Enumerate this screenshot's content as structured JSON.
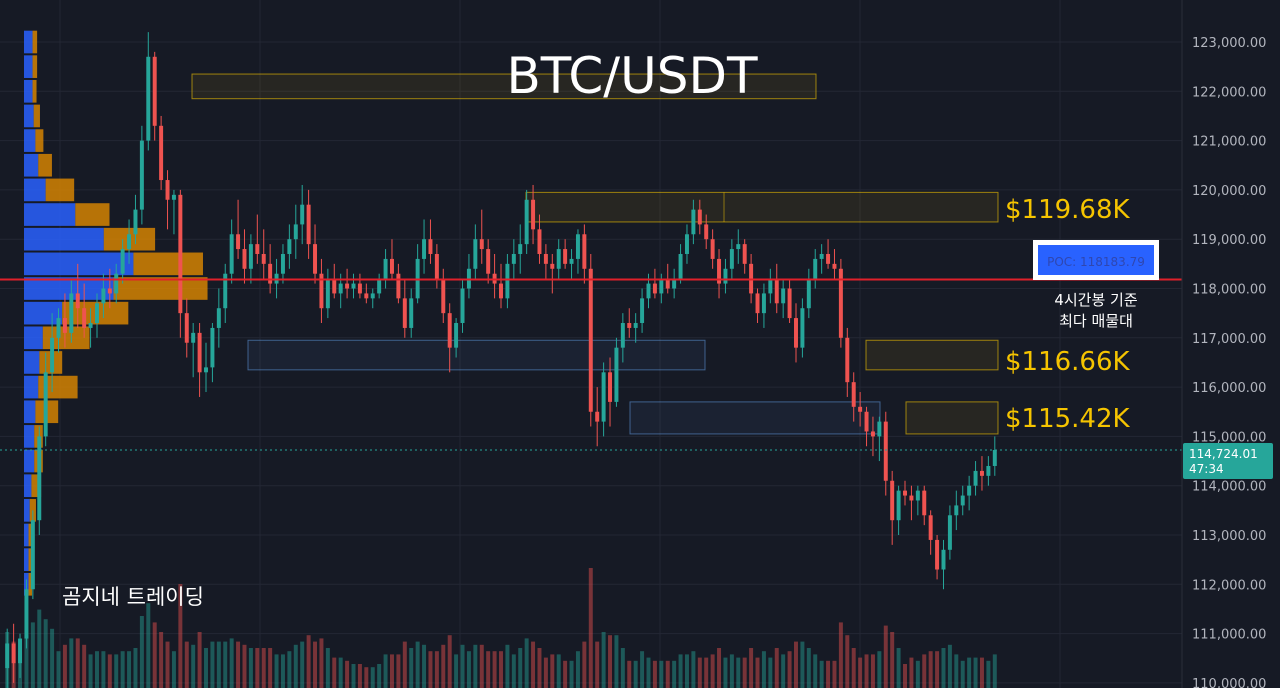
{
  "colors": {
    "background": "#161a25",
    "grid": "#232734",
    "up": "#26a69a",
    "down": "#ef5350",
    "profile_up": "#2962ff",
    "profile_down": "#e08a00",
    "zone_yellow": "#f5c400",
    "zone_blue": "#5a8fd0",
    "poc_line": "#e0202a",
    "current_price": "#26a69a"
  },
  "chart_data": {
    "type": "candlestick",
    "title": "BTC/USDT",
    "watermark": "곰지네 트레이딩",
    "y_axis": {
      "range": [
        110000,
        123800
      ],
      "ticks": [
        110000,
        111000,
        112000,
        113000,
        114000,
        115000,
        116000,
        117000,
        118000,
        119000,
        120000,
        121000,
        122000,
        123000
      ],
      "tick_labels": [
        "110,000.00",
        "111,000.00",
        "112,000.00",
        "113,000.00",
        "114,000.00",
        "115,000.00",
        "116,000.00",
        "117,000.00",
        "118,000.00",
        "119,000.00",
        "120,000.00",
        "121,000.00",
        "122,000.00",
        "123,000.00"
      ]
    },
    "current_price": {
      "value": 114724.01,
      "label": "114,724.01",
      "countdown": "47:34"
    },
    "poc": {
      "value": 118183.79,
      "label": "POC: 118183.79",
      "note_lines": [
        "4시간봉 기준",
        "최다 매물대"
      ]
    },
    "zones": [
      {
        "name": "top-zone",
        "color": "yellow",
        "high": 122350,
        "low": 121850
      },
      {
        "name": "zone-119",
        "color": "yellow",
        "high": 119950,
        "low": 119350,
        "label": "$119.68K"
      },
      {
        "name": "zone-116",
        "color": "yellow",
        "high": 116950,
        "low": 116350,
        "label": "$116.66K"
      },
      {
        "name": "zone-115",
        "color": "yellow",
        "high": 115700,
        "low": 115050,
        "label": "$115.42K"
      },
      {
        "name": "blue-zone-1",
        "color": "blue",
        "high": 116950,
        "low": 116350
      },
      {
        "name": "blue-zone-2",
        "color": "blue",
        "high": 115700,
        "low": 115050
      }
    ],
    "volume_profile": [
      {
        "price": 123000,
        "up": 150,
        "down": 80
      },
      {
        "price": 122500,
        "up": 150,
        "down": 80
      },
      {
        "price": 122000,
        "up": 150,
        "down": 70
      },
      {
        "price": 121500,
        "up": 170,
        "down": 110
      },
      {
        "price": 121000,
        "up": 200,
        "down": 140
      },
      {
        "price": 120500,
        "up": 250,
        "down": 240
      },
      {
        "price": 120000,
        "up": 380,
        "down": 500
      },
      {
        "price": 119500,
        "up": 900,
        "down": 600
      },
      {
        "price": 119000,
        "up": 1400,
        "down": 900
      },
      {
        "price": 118500,
        "up": 1920,
        "down": 1220
      },
      {
        "price": 118000,
        "up": 1570,
        "down": 1650
      },
      {
        "price": 117500,
        "up": 670,
        "down": 1160
      },
      {
        "price": 117000,
        "up": 330,
        "down": 820
      },
      {
        "price": 116500,
        "up": 270,
        "down": 400
      },
      {
        "price": 116000,
        "up": 250,
        "down": 690
      },
      {
        "price": 115500,
        "up": 200,
        "down": 400
      },
      {
        "price": 115000,
        "up": 180,
        "down": 150
      },
      {
        "price": 114500,
        "up": 180,
        "down": 150
      },
      {
        "price": 114000,
        "up": 130,
        "down": 170
      },
      {
        "price": 113500,
        "up": 100,
        "down": 110
      },
      {
        "price": 113000,
        "up": 80,
        "down": 80
      },
      {
        "price": 112500,
        "up": 80,
        "down": 60
      },
      {
        "price": 112000,
        "up": 80,
        "down": 60
      }
    ],
    "candles": [
      {
        "o": 110300,
        "h": 111100,
        "l": 109600,
        "c": 110800
      },
      {
        "o": 110800,
        "h": 111200,
        "l": 110000,
        "c": 110400
      },
      {
        "o": 110400,
        "h": 111000,
        "l": 110100,
        "c": 110900
      },
      {
        "o": 110900,
        "h": 112100,
        "l": 110700,
        "c": 111900
      },
      {
        "o": 111900,
        "h": 113500,
        "l": 111700,
        "c": 113300
      },
      {
        "o": 113300,
        "h": 115200,
        "l": 113000,
        "c": 115000
      },
      {
        "o": 115000,
        "h": 116700,
        "l": 114800,
        "c": 116300
      },
      {
        "o": 116300,
        "h": 117500,
        "l": 115900,
        "c": 117000
      },
      {
        "o": 117000,
        "h": 117600,
        "l": 116700,
        "c": 117400
      },
      {
        "o": 117400,
        "h": 117900,
        "l": 116800,
        "c": 117100
      },
      {
        "o": 117100,
        "h": 118200,
        "l": 116900,
        "c": 117900
      },
      {
        "o": 117900,
        "h": 118500,
        "l": 117200,
        "c": 117600
      },
      {
        "o": 117600,
        "h": 118100,
        "l": 117000,
        "c": 117200
      },
      {
        "o": 117200,
        "h": 117600,
        "l": 116800,
        "c": 117300
      },
      {
        "o": 117300,
        "h": 117900,
        "l": 117000,
        "c": 117700
      },
      {
        "o": 117700,
        "h": 118300,
        "l": 117400,
        "c": 118000
      },
      {
        "o": 118000,
        "h": 118400,
        "l": 117600,
        "c": 117900
      },
      {
        "o": 117900,
        "h": 118500,
        "l": 117700,
        "c": 118300
      },
      {
        "o": 118300,
        "h": 119000,
        "l": 118100,
        "c": 118800
      },
      {
        "o": 118800,
        "h": 119400,
        "l": 118500,
        "c": 119100
      },
      {
        "o": 119100,
        "h": 119900,
        "l": 118900,
        "c": 119600
      },
      {
        "o": 119600,
        "h": 121300,
        "l": 119300,
        "c": 121000
      },
      {
        "o": 121000,
        "h": 123200,
        "l": 120800,
        "c": 122700
      },
      {
        "o": 122700,
        "h": 122800,
        "l": 121000,
        "c": 121300
      },
      {
        "o": 121300,
        "h": 121500,
        "l": 120000,
        "c": 120200
      },
      {
        "o": 120200,
        "h": 120400,
        "l": 119200,
        "c": 119800
      },
      {
        "o": 119800,
        "h": 120000,
        "l": 119100,
        "c": 119900
      },
      {
        "o": 119900,
        "h": 120000,
        "l": 117000,
        "c": 117500
      },
      {
        "o": 117500,
        "h": 117800,
        "l": 116600,
        "c": 116900
      },
      {
        "o": 116900,
        "h": 117300,
        "l": 116200,
        "c": 117100
      },
      {
        "o": 117100,
        "h": 117300,
        "l": 115800,
        "c": 116300
      },
      {
        "o": 116300,
        "h": 116900,
        "l": 115900,
        "c": 116400
      },
      {
        "o": 116400,
        "h": 117300,
        "l": 116100,
        "c": 117200
      },
      {
        "o": 117200,
        "h": 118000,
        "l": 116800,
        "c": 117600
      },
      {
        "o": 117600,
        "h": 118500,
        "l": 117300,
        "c": 118300
      },
      {
        "o": 118300,
        "h": 119400,
        "l": 118100,
        "c": 119100
      },
      {
        "o": 119100,
        "h": 119800,
        "l": 118600,
        "c": 118800
      },
      {
        "o": 118800,
        "h": 119200,
        "l": 118100,
        "c": 118400
      },
      {
        "o": 118400,
        "h": 119100,
        "l": 118100,
        "c": 118900
      },
      {
        "o": 118900,
        "h": 119500,
        "l": 118500,
        "c": 118700
      },
      {
        "o": 118700,
        "h": 119200,
        "l": 118200,
        "c": 118500
      },
      {
        "o": 118500,
        "h": 118900,
        "l": 117900,
        "c": 118100
      },
      {
        "o": 118100,
        "h": 118600,
        "l": 117800,
        "c": 118300
      },
      {
        "o": 118300,
        "h": 118900,
        "l": 118100,
        "c": 118700
      },
      {
        "o": 118700,
        "h": 119300,
        "l": 118400,
        "c": 119000
      },
      {
        "o": 119000,
        "h": 119700,
        "l": 118600,
        "c": 119300
      },
      {
        "o": 119300,
        "h": 120100,
        "l": 118900,
        "c": 119700
      },
      {
        "o": 119700,
        "h": 120000,
        "l": 118600,
        "c": 118900
      },
      {
        "o": 118900,
        "h": 119300,
        "l": 118100,
        "c": 118300
      },
      {
        "o": 118300,
        "h": 118600,
        "l": 117300,
        "c": 117600
      },
      {
        "o": 117600,
        "h": 118400,
        "l": 117400,
        "c": 118200
      },
      {
        "o": 118200,
        "h": 118500,
        "l": 117800,
        "c": 117900
      },
      {
        "o": 117900,
        "h": 118300,
        "l": 117600,
        "c": 118100
      },
      {
        "o": 118100,
        "h": 118400,
        "l": 117800,
        "c": 118000
      },
      {
        "o": 118000,
        "h": 118300,
        "l": 117800,
        "c": 118100
      },
      {
        "o": 118100,
        "h": 118300,
        "l": 117800,
        "c": 117900
      },
      {
        "o": 117900,
        "h": 118100,
        "l": 117700,
        "c": 117800
      },
      {
        "o": 117800,
        "h": 118000,
        "l": 117600,
        "c": 117900
      },
      {
        "o": 117900,
        "h": 118300,
        "l": 117800,
        "c": 118200
      },
      {
        "o": 118200,
        "h": 118800,
        "l": 118000,
        "c": 118600
      },
      {
        "o": 118600,
        "h": 119000,
        "l": 118200,
        "c": 118300
      },
      {
        "o": 118300,
        "h": 118500,
        "l": 117700,
        "c": 117800
      },
      {
        "o": 117800,
        "h": 118200,
        "l": 117000,
        "c": 117200
      },
      {
        "o": 117200,
        "h": 118000,
        "l": 117000,
        "c": 117800
      },
      {
        "o": 117800,
        "h": 118900,
        "l": 117700,
        "c": 118600
      },
      {
        "o": 118600,
        "h": 119400,
        "l": 118300,
        "c": 119000
      },
      {
        "o": 119000,
        "h": 119400,
        "l": 118500,
        "c": 118700
      },
      {
        "o": 118700,
        "h": 118900,
        "l": 118000,
        "c": 118200
      },
      {
        "o": 118200,
        "h": 118400,
        "l": 117300,
        "c": 117500
      },
      {
        "o": 117500,
        "h": 117700,
        "l": 116300,
        "c": 116800
      },
      {
        "o": 116800,
        "h": 117400,
        "l": 116600,
        "c": 117300
      },
      {
        "o": 117300,
        "h": 118200,
        "l": 117100,
        "c": 118000
      },
      {
        "o": 118000,
        "h": 118700,
        "l": 117800,
        "c": 118400
      },
      {
        "o": 118400,
        "h": 119300,
        "l": 118200,
        "c": 119000
      },
      {
        "o": 119000,
        "h": 119600,
        "l": 118500,
        "c": 118800
      },
      {
        "o": 118800,
        "h": 119000,
        "l": 118100,
        "c": 118300
      },
      {
        "o": 118300,
        "h": 118700,
        "l": 117800,
        "c": 118100
      },
      {
        "o": 118100,
        "h": 118500,
        "l": 117600,
        "c": 117800
      },
      {
        "o": 117800,
        "h": 118700,
        "l": 117600,
        "c": 118500
      },
      {
        "o": 118500,
        "h": 119000,
        "l": 118200,
        "c": 118700
      },
      {
        "o": 118700,
        "h": 119300,
        "l": 118300,
        "c": 118900
      },
      {
        "o": 118900,
        "h": 120000,
        "l": 118700,
        "c": 119800
      },
      {
        "o": 119800,
        "h": 120100,
        "l": 118900,
        "c": 119200
      },
      {
        "o": 119200,
        "h": 119500,
        "l": 118500,
        "c": 118700
      },
      {
        "o": 118700,
        "h": 118900,
        "l": 118200,
        "c": 118500
      },
      {
        "o": 118500,
        "h": 118700,
        "l": 117900,
        "c": 118400
      },
      {
        "o": 118400,
        "h": 119000,
        "l": 118200,
        "c": 118800
      },
      {
        "o": 118800,
        "h": 119000,
        "l": 118400,
        "c": 118500
      },
      {
        "o": 118500,
        "h": 118800,
        "l": 118200,
        "c": 118600
      },
      {
        "o": 118600,
        "h": 119200,
        "l": 118300,
        "c": 119100
      },
      {
        "o": 119100,
        "h": 119300,
        "l": 118100,
        "c": 118400
      },
      {
        "o": 118400,
        "h": 118700,
        "l": 115200,
        "c": 115500
      },
      {
        "o": 115500,
        "h": 116000,
        "l": 114800,
        "c": 115300
      },
      {
        "o": 115300,
        "h": 116500,
        "l": 115000,
        "c": 116300
      },
      {
        "o": 116300,
        "h": 116600,
        "l": 115200,
        "c": 115700
      },
      {
        "o": 115700,
        "h": 117000,
        "l": 115600,
        "c": 116800
      },
      {
        "o": 116800,
        "h": 117500,
        "l": 116500,
        "c": 117300
      },
      {
        "o": 117300,
        "h": 117600,
        "l": 117000,
        "c": 117200
      },
      {
        "o": 117200,
        "h": 117500,
        "l": 116900,
        "c": 117300
      },
      {
        "o": 117300,
        "h": 118000,
        "l": 117100,
        "c": 117800
      },
      {
        "o": 117800,
        "h": 118300,
        "l": 117600,
        "c": 118100
      },
      {
        "o": 118100,
        "h": 118400,
        "l": 117800,
        "c": 117900
      },
      {
        "o": 117900,
        "h": 118300,
        "l": 117700,
        "c": 118200
      },
      {
        "o": 118200,
        "h": 118500,
        "l": 117900,
        "c": 118000
      },
      {
        "o": 118000,
        "h": 118400,
        "l": 117800,
        "c": 118200
      },
      {
        "o": 118200,
        "h": 118900,
        "l": 118100,
        "c": 118700
      },
      {
        "o": 118700,
        "h": 119300,
        "l": 118500,
        "c": 119100
      },
      {
        "o": 119100,
        "h": 119800,
        "l": 118900,
        "c": 119600
      },
      {
        "o": 119600,
        "h": 119800,
        "l": 119100,
        "c": 119300
      },
      {
        "o": 119300,
        "h": 119500,
        "l": 118800,
        "c": 119000
      },
      {
        "o": 119000,
        "h": 119200,
        "l": 118400,
        "c": 118600
      },
      {
        "o": 118600,
        "h": 118800,
        "l": 117800,
        "c": 118100
      },
      {
        "o": 118100,
        "h": 118600,
        "l": 117900,
        "c": 118400
      },
      {
        "o": 118400,
        "h": 119000,
        "l": 118200,
        "c": 118800
      },
      {
        "o": 118800,
        "h": 119200,
        "l": 118500,
        "c": 118900
      },
      {
        "o": 118900,
        "h": 119000,
        "l": 118300,
        "c": 118500
      },
      {
        "o": 118500,
        "h": 118700,
        "l": 117700,
        "c": 117900
      },
      {
        "o": 117900,
        "h": 118000,
        "l": 117300,
        "c": 117500
      },
      {
        "o": 117500,
        "h": 118100,
        "l": 117200,
        "c": 117900
      },
      {
        "o": 117900,
        "h": 118400,
        "l": 117700,
        "c": 118200
      },
      {
        "o": 118200,
        "h": 118500,
        "l": 117500,
        "c": 117700
      },
      {
        "o": 117700,
        "h": 118200,
        "l": 117400,
        "c": 118000
      },
      {
        "o": 118000,
        "h": 118200,
        "l": 117300,
        "c": 117400
      },
      {
        "o": 117400,
        "h": 117700,
        "l": 116500,
        "c": 116800
      },
      {
        "o": 116800,
        "h": 117800,
        "l": 116600,
        "c": 117600
      },
      {
        "o": 117600,
        "h": 118400,
        "l": 117400,
        "c": 118200
      },
      {
        "o": 118200,
        "h": 118800,
        "l": 118000,
        "c": 118600
      },
      {
        "o": 118600,
        "h": 118900,
        "l": 118300,
        "c": 118700
      },
      {
        "o": 118700,
        "h": 119000,
        "l": 118400,
        "c": 118500
      },
      {
        "o": 118500,
        "h": 118800,
        "l": 118200,
        "c": 118400
      },
      {
        "o": 118400,
        "h": 118600,
        "l": 116800,
        "c": 117000
      },
      {
        "o": 117000,
        "h": 117200,
        "l": 115800,
        "c": 116100
      },
      {
        "o": 116100,
        "h": 116300,
        "l": 115300,
        "c": 115600
      },
      {
        "o": 115600,
        "h": 115900,
        "l": 115200,
        "c": 115500
      },
      {
        "o": 115500,
        "h": 115600,
        "l": 114800,
        "c": 115100
      },
      {
        "o": 115100,
        "h": 115400,
        "l": 114600,
        "c": 115000
      },
      {
        "o": 115000,
        "h": 115400,
        "l": 114500,
        "c": 115300
      },
      {
        "o": 115300,
        "h": 115500,
        "l": 113800,
        "c": 114100
      },
      {
        "o": 114100,
        "h": 114300,
        "l": 112800,
        "c": 113300
      },
      {
        "o": 113300,
        "h": 114000,
        "l": 113000,
        "c": 113900
      },
      {
        "o": 113900,
        "h": 114100,
        "l": 113600,
        "c": 113800
      },
      {
        "o": 113800,
        "h": 114000,
        "l": 113300,
        "c": 113700
      },
      {
        "o": 113700,
        "h": 114000,
        "l": 113400,
        "c": 113900
      },
      {
        "o": 113900,
        "h": 114000,
        "l": 113200,
        "c": 113400
      },
      {
        "o": 113400,
        "h": 113500,
        "l": 112600,
        "c": 112900
      },
      {
        "o": 112900,
        "h": 113000,
        "l": 112100,
        "c": 112300
      },
      {
        "o": 112300,
        "h": 112900,
        "l": 111900,
        "c": 112700
      },
      {
        "o": 112700,
        "h": 113600,
        "l": 112500,
        "c": 113400
      },
      {
        "o": 113400,
        "h": 113900,
        "l": 113100,
        "c": 113600
      },
      {
        "o": 113600,
        "h": 114000,
        "l": 113400,
        "c": 113800
      },
      {
        "o": 113800,
        "h": 114200,
        "l": 113500,
        "c": 114000
      },
      {
        "o": 114000,
        "h": 114500,
        "l": 113800,
        "c": 114300
      },
      {
        "o": 114300,
        "h": 114600,
        "l": 113900,
        "c": 114200
      },
      {
        "o": 114200,
        "h": 114600,
        "l": 114000,
        "c": 114400
      },
      {
        "o": 114400,
        "h": 115000,
        "l": 114200,
        "c": 114724
      }
    ]
  }
}
